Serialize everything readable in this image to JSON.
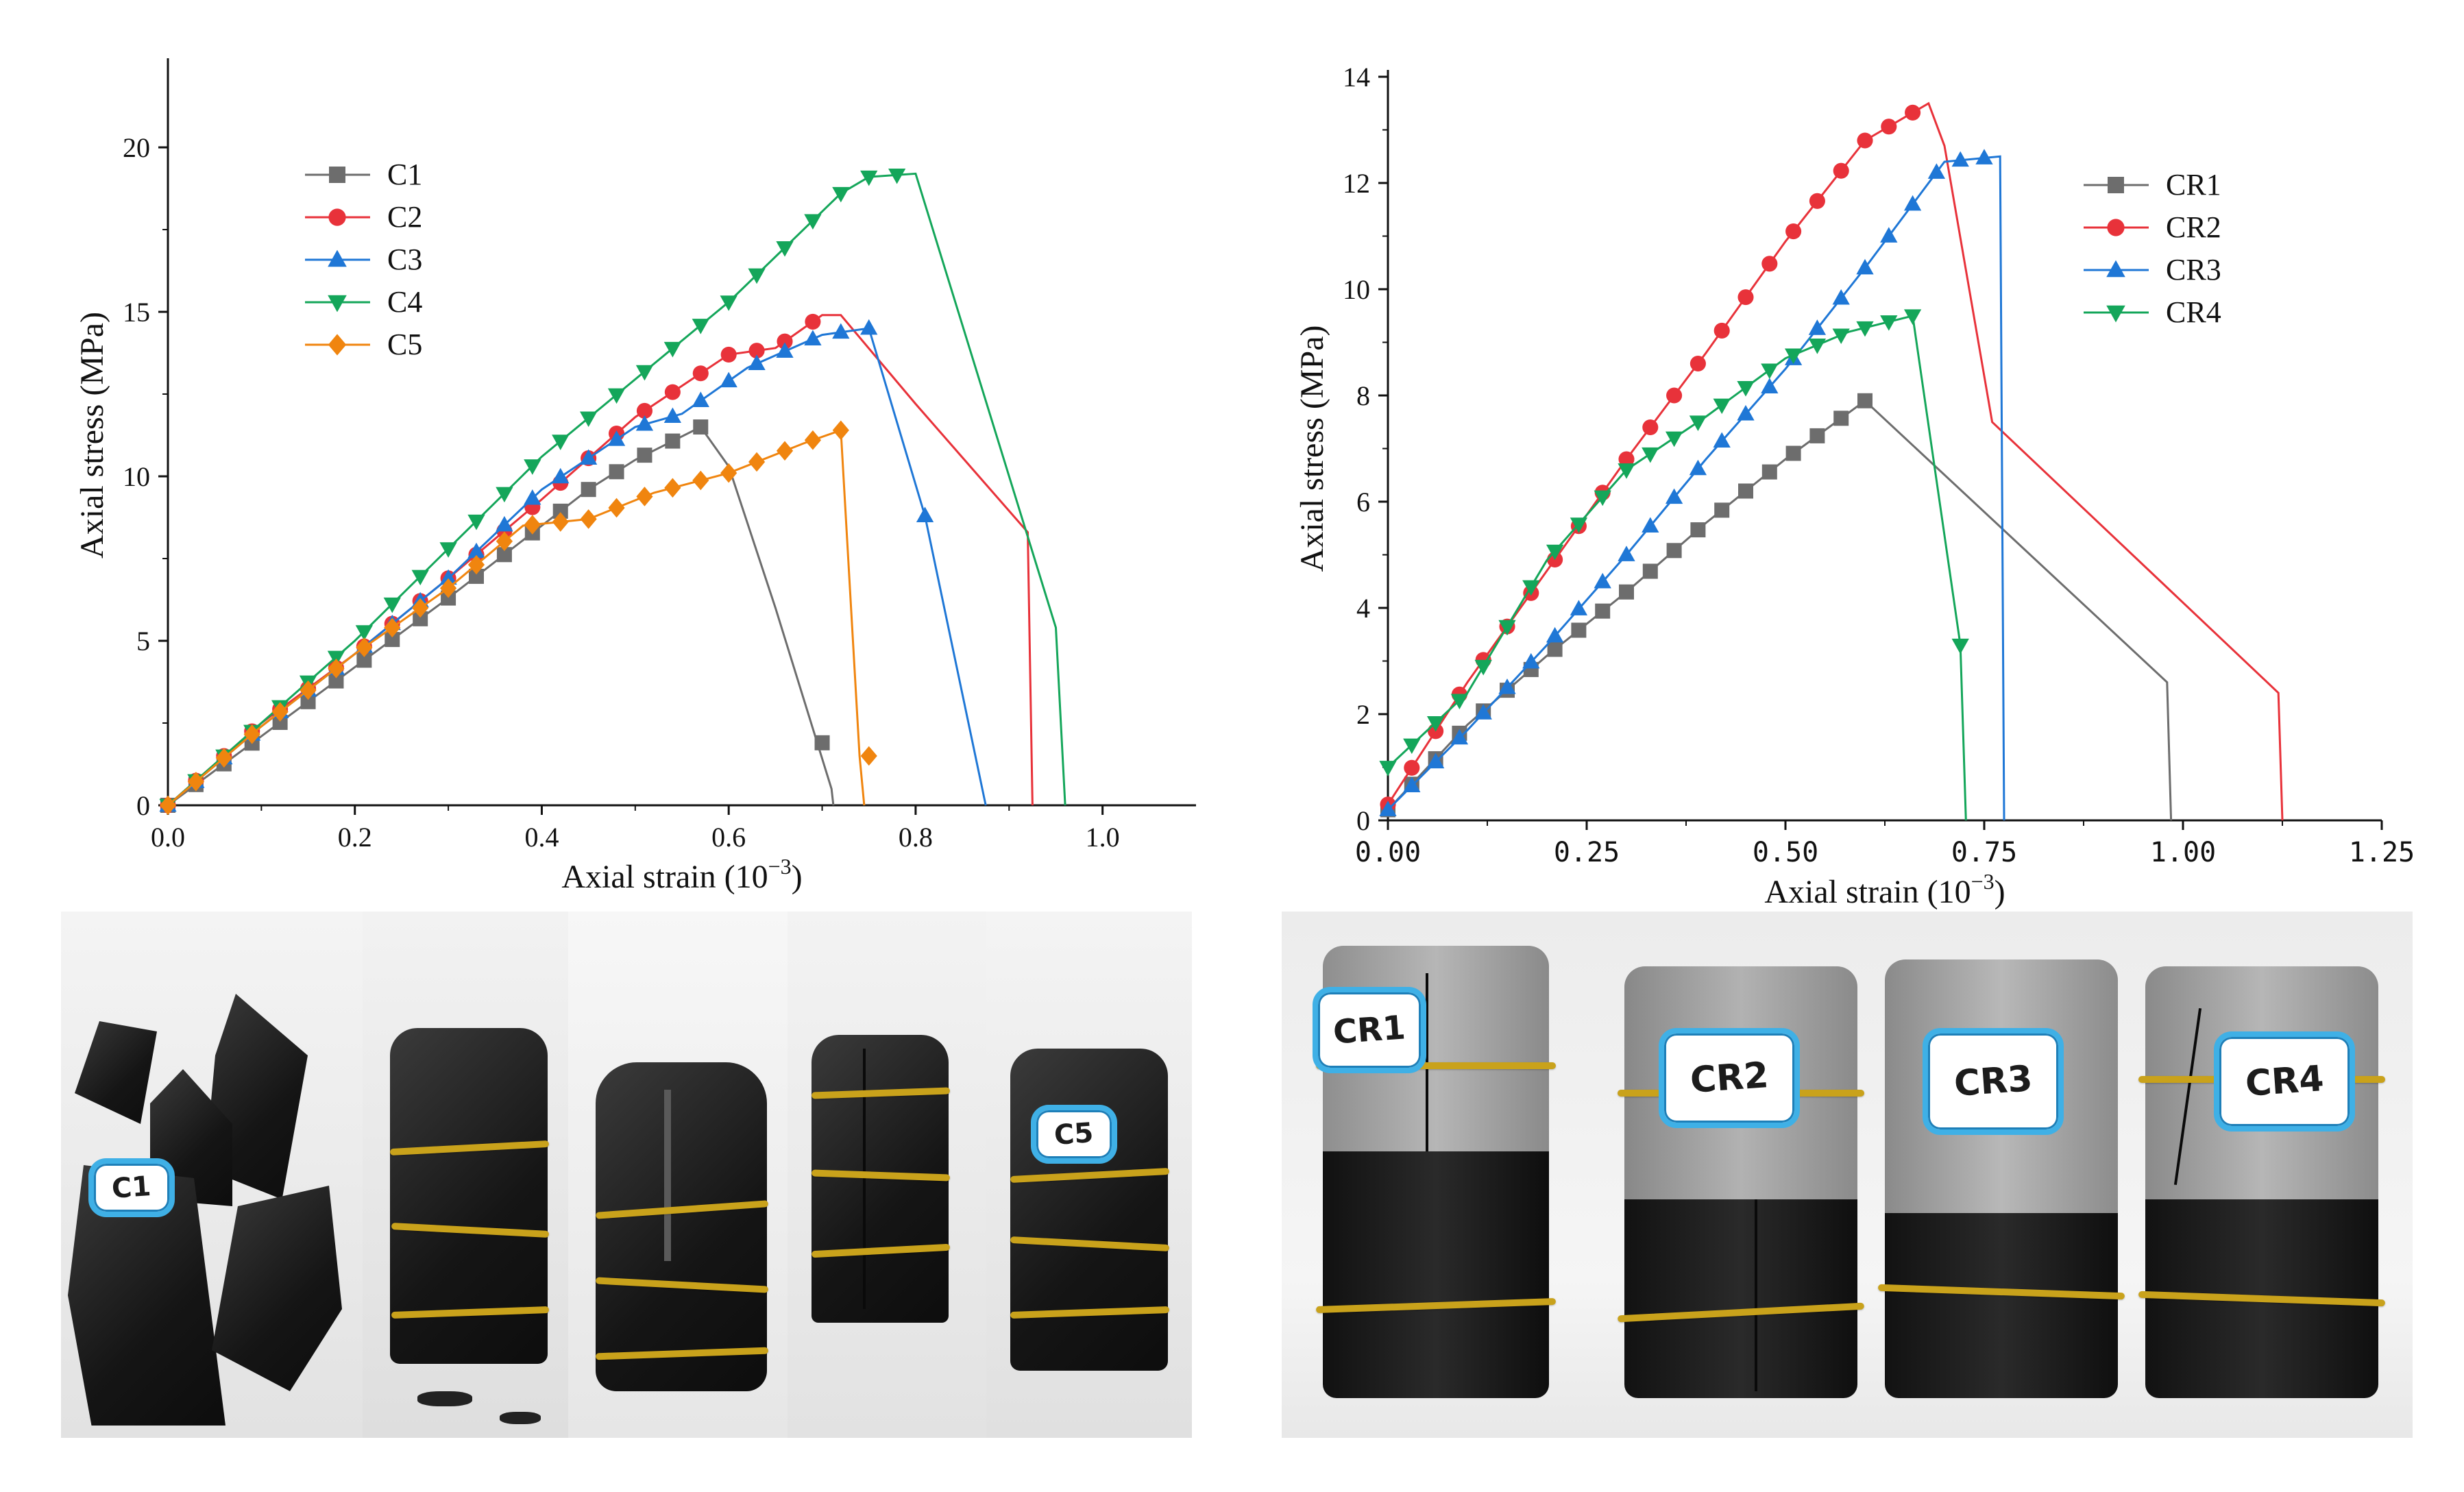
{
  "charts": [
    {
      "type": "line",
      "xlabel": "Axial strain (10",
      "xlabel_sup": "−3",
      "xlabel_end": ")",
      "ylabel": "Axial stress (MPa)",
      "xlim": [
        0,
        1.1
      ],
      "ylim": [
        0,
        22.5
      ],
      "x_ticks": [
        {
          "v": 0,
          "t": "0.0"
        },
        {
          "v": 0.2,
          "t": "0.2"
        },
        {
          "v": 0.4,
          "t": "0.4"
        },
        {
          "v": 0.6,
          "t": "0.6"
        },
        {
          "v": 0.8,
          "t": "0.8"
        },
        {
          "v": 1.0,
          "t": "1.0"
        }
      ],
      "y_ticks": [
        {
          "v": 0,
          "t": "0"
        },
        {
          "v": 5,
          "t": "5"
        },
        {
          "v": 10,
          "t": "10"
        },
        {
          "v": 15,
          "t": "15"
        },
        {
          "v": 20,
          "t": "20"
        }
      ],
      "legend_position": "upper-left",
      "series": [
        {
          "name": "C1",
          "color": "#6d6d6d",
          "marker": "square",
          "line": [
            [
              0,
              0
            ],
            [
              0.1,
              2.1
            ],
            [
              0.2,
              4.2
            ],
            [
              0.3,
              6.3
            ],
            [
              0.4,
              8.5
            ],
            [
              0.45,
              9.6
            ],
            [
              0.5,
              10.5
            ],
            [
              0.57,
              11.5
            ],
            [
              0.6,
              10.3
            ],
            [
              0.65,
              6.0
            ],
            [
              0.71,
              0.5
            ],
            [
              0.712,
              0
            ]
          ],
          "step": 0.03,
          "extra_markers": [
            [
              0.7,
              1.9
            ]
          ]
        },
        {
          "name": "C2",
          "color": "#e8323a",
          "marker": "circle",
          "line": [
            [
              0,
              0
            ],
            [
              0.1,
              2.5
            ],
            [
              0.2,
              4.6
            ],
            [
              0.3,
              6.9
            ],
            [
              0.4,
              9.3
            ],
            [
              0.5,
              11.8
            ],
            [
              0.6,
              13.7
            ],
            [
              0.65,
              13.9
            ],
            [
              0.7,
              14.9
            ],
            [
              0.72,
              14.9
            ],
            [
              0.8,
              12.2
            ],
            [
              0.92,
              8.3
            ],
            [
              0.925,
              0
            ]
          ],
          "step": 0.03
        },
        {
          "name": "C3",
          "color": "#1f77d6",
          "marker": "triangle",
          "line": [
            [
              0,
              0
            ],
            [
              0.1,
              2.4
            ],
            [
              0.2,
              4.6
            ],
            [
              0.3,
              6.9
            ],
            [
              0.4,
              9.6
            ],
            [
              0.5,
              11.5
            ],
            [
              0.55,
              11.9
            ],
            [
              0.62,
              13.3
            ],
            [
              0.7,
              14.3
            ],
            [
              0.75,
              14.5
            ],
            [
              0.81,
              8.8
            ],
            [
              0.875,
              0
            ]
          ],
          "step": 0.03,
          "extra_markers": [
            [
              0.81,
              8.8
            ]
          ]
        },
        {
          "name": "C4",
          "color": "#14a65a",
          "marker": "triangle-down",
          "line": [
            [
              0,
              0
            ],
            [
              0.2,
              5.0
            ],
            [
              0.4,
              10.6
            ],
            [
              0.6,
              15.3
            ],
            [
              0.72,
              18.6
            ],
            [
              0.75,
              19.1
            ],
            [
              0.8,
              19.2
            ],
            [
              0.95,
              5.4
            ],
            [
              0.96,
              0
            ]
          ],
          "step": 0.03
        },
        {
          "name": "C5",
          "color": "#f0850f",
          "marker": "diamond",
          "line": [
            [
              0,
              0
            ],
            [
              0.1,
              2.4
            ],
            [
              0.2,
              4.6
            ],
            [
              0.3,
              6.6
            ],
            [
              0.38,
              8.5
            ],
            [
              0.45,
              8.7
            ],
            [
              0.52,
              9.5
            ],
            [
              0.6,
              10.1
            ],
            [
              0.68,
              11.0
            ],
            [
              0.72,
              11.4
            ],
            [
              0.74,
              1.5
            ],
            [
              0.745,
              0
            ]
          ],
          "step": 0.03,
          "extra_markers": [
            [
              0.75,
              1.5
            ]
          ]
        }
      ]
    },
    {
      "type": "line",
      "xlabel": "Axial strain (10",
      "xlabel_sup": "−3",
      "xlabel_end": ")",
      "ylabel": "Axial stress (MPa)",
      "xlim": [
        0,
        1.25
      ],
      "ylim": [
        0,
        14
      ],
      "x_ticks": [
        {
          "v": 0,
          "t": "0.00"
        },
        {
          "v": 0.25,
          "t": "0.25"
        },
        {
          "v": 0.5,
          "t": "0.50"
        },
        {
          "v": 0.75,
          "t": "0.75"
        },
        {
          "v": 1.0,
          "t": "1.00"
        },
        {
          "v": 1.25,
          "t": "1.25"
        }
      ],
      "y_ticks": [
        {
          "v": 0,
          "t": "0"
        },
        {
          "v": 2,
          "t": "2"
        },
        {
          "v": 4,
          "t": "4"
        },
        {
          "v": 6,
          "t": "6"
        },
        {
          "v": 8,
          "t": "8"
        },
        {
          "v": 10,
          "t": "10"
        },
        {
          "v": 12,
          "t": "12"
        },
        {
          "v": 14,
          "t": "14"
        }
      ],
      "legend_position": "upper-right",
      "series": [
        {
          "name": "CR1",
          "color": "#6d6d6d",
          "marker": "square",
          "line": [
            [
              0,
              0.2
            ],
            [
              0.1,
              1.8
            ],
            [
              0.2,
              3.1
            ],
            [
              0.3,
              4.3
            ],
            [
              0.4,
              5.6
            ],
            [
              0.5,
              6.8
            ],
            [
              0.6,
              7.9
            ],
            [
              0.98,
              2.6
            ],
            [
              0.985,
              0
            ]
          ],
          "step": 0.03
        },
        {
          "name": "CR2",
          "color": "#e8323a",
          "marker": "circle",
          "line": [
            [
              0,
              0.3
            ],
            [
              0.1,
              2.6
            ],
            [
              0.2,
              4.7
            ],
            [
              0.3,
              6.8
            ],
            [
              0.4,
              8.8
            ],
            [
              0.5,
              10.9
            ],
            [
              0.6,
              12.8
            ],
            [
              0.68,
              13.5
            ],
            [
              0.7,
              12.7
            ],
            [
              0.76,
              7.5
            ],
            [
              1.12,
              2.4
            ],
            [
              1.125,
              0
            ]
          ],
          "step": 0.03
        },
        {
          "name": "CR3",
          "color": "#1f77d6",
          "marker": "triangle",
          "line": [
            [
              0,
              0.2
            ],
            [
              0.1,
              1.7
            ],
            [
              0.2,
              3.3
            ],
            [
              0.3,
              5.0
            ],
            [
              0.4,
              6.8
            ],
            [
              0.5,
              8.5
            ],
            [
              0.6,
              10.4
            ],
            [
              0.7,
              12.4
            ],
            [
              0.77,
              12.5
            ],
            [
              0.775,
              0
            ]
          ],
          "step": 0.03
        },
        {
          "name": "CR4",
          "color": "#14a65a",
          "marker": "triangle-down",
          "line": [
            [
              0,
              1.0
            ],
            [
              0.1,
              2.4
            ],
            [
              0.2,
              4.9
            ],
            [
              0.3,
              6.6
            ],
            [
              0.4,
              7.6
            ],
            [
              0.5,
              8.7
            ],
            [
              0.58,
              9.2
            ],
            [
              0.66,
              9.5
            ],
            [
              0.72,
              3.3
            ],
            [
              0.727,
              0
            ]
          ],
          "step": 0.03,
          "extra_markers": [
            [
              0.72,
              3.3
            ]
          ]
        }
      ]
    }
  ],
  "photos": {
    "left_labels": [
      "C1",
      "C5"
    ],
    "right_labels": [
      "CR1",
      "CR2",
      "CR3",
      "CR4"
    ]
  }
}
